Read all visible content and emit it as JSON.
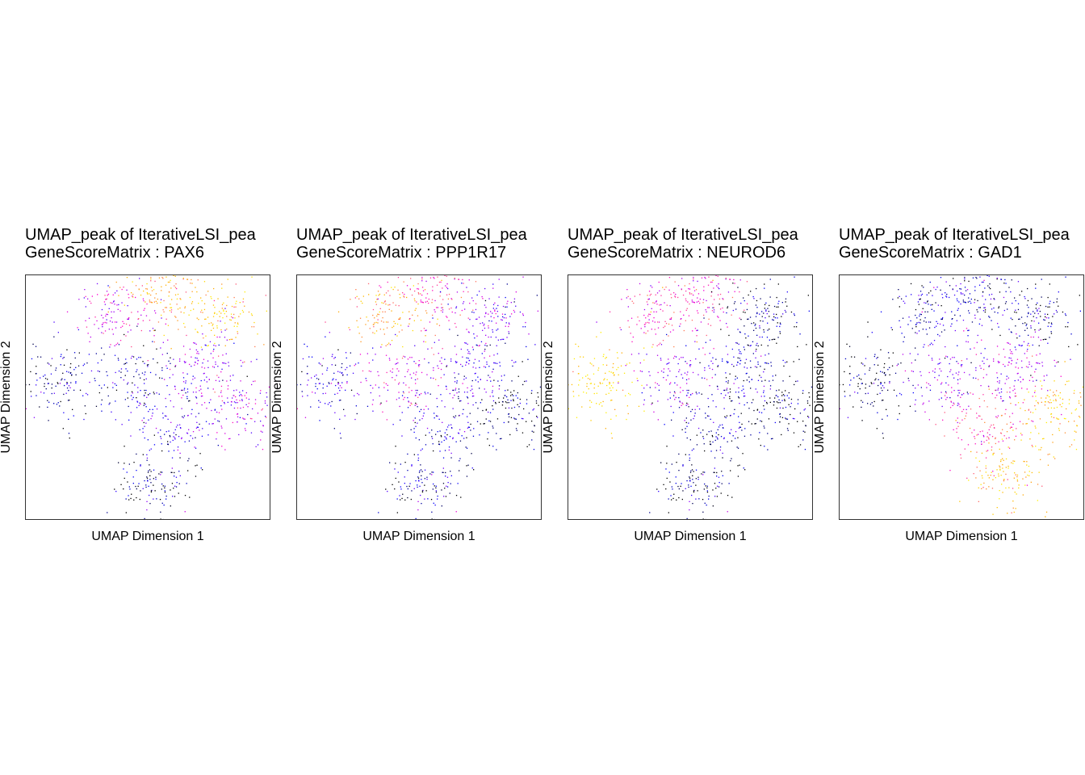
{
  "panels": [
    {
      "title_line1": "UMAP_peak of IterativeLSI_pea",
      "title_line2": "GeneScoreMatrix : PAX6",
      "xlabel": "UMAP Dimension 1",
      "ylabel": "UMAP Dimension 2"
    },
    {
      "title_line1": "UMAP_peak of IterativeLSI_pea",
      "title_line2": "GeneScoreMatrix : PPP1R17",
      "xlabel": "UMAP Dimension 1",
      "ylabel": "UMAP Dimension 2"
    },
    {
      "title_line1": "UMAP_peak of IterativeLSI_pea",
      "title_line2": "GeneScoreMatrix : NEUROD6",
      "xlabel": "UMAP Dimension 1",
      "ylabel": "UMAP Dimension 2"
    },
    {
      "title_line1": "UMAP_peak of IterativeLSI_pea",
      "title_line2": "GeneScoreMatrix : GAD1",
      "xlabel": "UMAP Dimension 1",
      "ylabel": "UMAP Dimension 2"
    }
  ],
  "colors": {
    "palette": [
      "#000000",
      "#0000ff",
      "#8a00ff",
      "#ff00d0",
      "#ff6a6a",
      "#ffb000",
      "#ffee00"
    ]
  },
  "chart_data": [
    {
      "type": "scatter",
      "gene": "PAX6",
      "clusters": [
        {
          "x": -8.5,
          "y": 1.5,
          "level": 0.1
        },
        {
          "x": -3.0,
          "y": 7.8,
          "level": 0.45
        },
        {
          "x": 1.5,
          "y": 9.5,
          "level": 0.8
        },
        {
          "x": 6.5,
          "y": 7.5,
          "level": 0.85
        },
        {
          "x": 8.5,
          "y": -1.0,
          "level": 0.4
        },
        {
          "x": 2.5,
          "y": -2.5,
          "level": 0.2
        },
        {
          "x": 0.5,
          "y": -8.0,
          "level": 0.05
        },
        {
          "x": -1.5,
          "y": 2.0,
          "level": 0.15
        },
        {
          "x": 5.0,
          "y": 3.0,
          "level": 0.35
        }
      ]
    },
    {
      "type": "scatter",
      "gene": "PPP1R17",
      "clusters": [
        {
          "x": -8.5,
          "y": 1.5,
          "level": 0.2
        },
        {
          "x": -3.0,
          "y": 7.8,
          "level": 0.8
        },
        {
          "x": 1.5,
          "y": 9.5,
          "level": 0.55
        },
        {
          "x": 6.5,
          "y": 7.5,
          "level": 0.3
        },
        {
          "x": 8.5,
          "y": -1.0,
          "level": 0.05
        },
        {
          "x": 2.5,
          "y": -2.5,
          "level": 0.15
        },
        {
          "x": 0.5,
          "y": -8.0,
          "level": 0.1
        },
        {
          "x": -1.5,
          "y": 2.0,
          "level": 0.45
        },
        {
          "x": 5.0,
          "y": 3.0,
          "level": 0.25
        }
      ]
    },
    {
      "type": "scatter",
      "gene": "NEUROD6",
      "clusters": [
        {
          "x": -8.5,
          "y": 1.5,
          "level": 0.95
        },
        {
          "x": -3.0,
          "y": 7.8,
          "level": 0.55
        },
        {
          "x": 1.5,
          "y": 9.5,
          "level": 0.5
        },
        {
          "x": 6.5,
          "y": 7.5,
          "level": 0.05
        },
        {
          "x": 8.5,
          "y": -1.0,
          "level": 0.05
        },
        {
          "x": 2.5,
          "y": -2.5,
          "level": 0.1
        },
        {
          "x": 0.5,
          "y": -8.0,
          "level": 0.05
        },
        {
          "x": -1.5,
          "y": 2.0,
          "level": 0.35
        },
        {
          "x": 5.0,
          "y": 3.0,
          "level": 0.15
        }
      ]
    },
    {
      "type": "scatter",
      "gene": "GAD1",
      "clusters": [
        {
          "x": -8.5,
          "y": 1.5,
          "level": 0.05
        },
        {
          "x": -3.0,
          "y": 7.8,
          "level": 0.15
        },
        {
          "x": 1.5,
          "y": 9.5,
          "level": 0.15
        },
        {
          "x": 6.5,
          "y": 7.5,
          "level": 0.05
        },
        {
          "x": 8.5,
          "y": -1.0,
          "level": 0.9
        },
        {
          "x": 2.5,
          "y": -2.5,
          "level": 0.55
        },
        {
          "x": 4.0,
          "y": -7.0,
          "level": 0.85
        },
        {
          "x": -1.5,
          "y": 2.0,
          "level": 0.35
        },
        {
          "x": 5.0,
          "y": 3.0,
          "level": 0.4
        }
      ]
    }
  ]
}
